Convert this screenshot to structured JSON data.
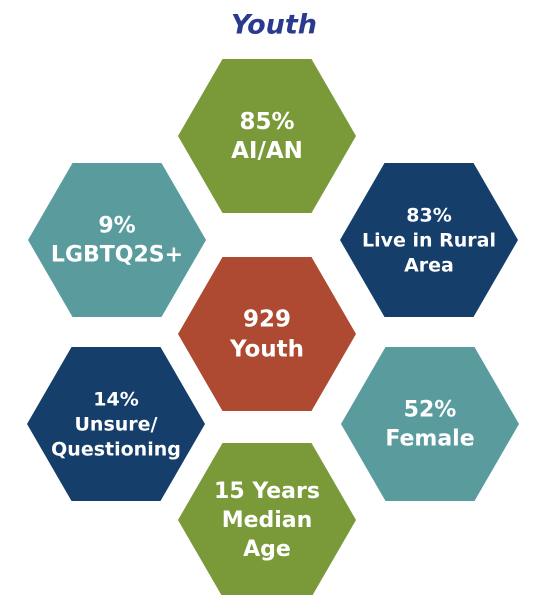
{
  "title": "Youth",
  "hexagons": [
    {
      "lines": [
        "85%",
        "AI/AN"
      ],
      "color": "#7a9a3a"
    },
    {
      "lines": [
        "9%",
        "LGBTQ2S+"
      ],
      "color": "#5a9c9e"
    },
    {
      "lines": [
        "83%",
        "Live in Rural",
        "Area"
      ],
      "color": "#153e6b"
    },
    {
      "lines": [
        "929",
        "Youth"
      ],
      "color": "#ae4a31"
    },
    {
      "lines": [
        "14%",
        "Unsure/",
        "Questioning"
      ],
      "color": "#153e6b"
    },
    {
      "lines": [
        "52%",
        "Female"
      ],
      "color": "#5a9c9e"
    },
    {
      "lines": [
        "15 Years",
        "Median",
        "Age"
      ],
      "color": "#7a9a3a"
    }
  ]
}
